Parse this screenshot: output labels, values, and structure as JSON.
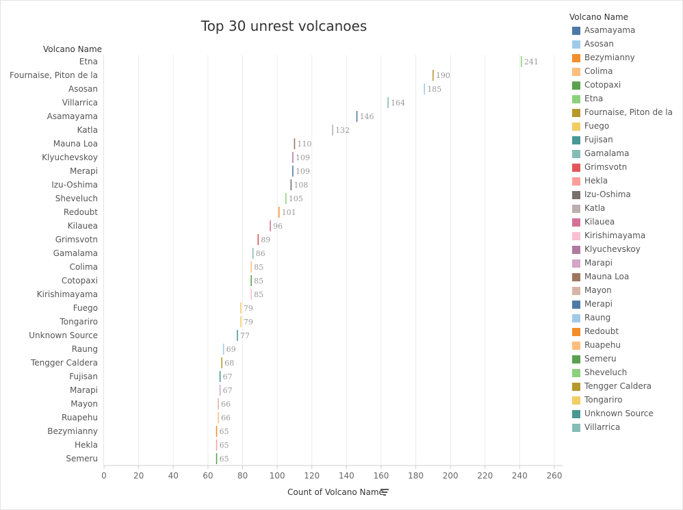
{
  "chart_data": {
    "type": "scatter",
    "title": "Top 30 unrest volcanoes",
    "row_header": "Volcano Name",
    "xlabel": "Count of Volcano Name",
    "xlim": [
      0,
      260
    ],
    "xticks": [
      0,
      20,
      40,
      60,
      80,
      100,
      120,
      140,
      160,
      180,
      200,
      220,
      240,
      260
    ],
    "grid": true,
    "legend_title": "Volcano Name",
    "legend_position": "right",
    "categories": [
      "Etna",
      "Fournaise, Piton de la",
      "Asosan",
      "Villarrica",
      "Asamayama",
      "Katla",
      "Mauna Loa",
      "Klyuchevskoy",
      "Merapi",
      "Izu-Oshima",
      "Sheveluch",
      "Redoubt",
      "Kilauea",
      "Grimsvotn",
      "Gamalama",
      "Colima",
      "Cotopaxi",
      "Kirishimayama",
      "Fuego",
      "Tongariro",
      "Unknown Source",
      "Raung",
      "Tengger Caldera",
      "Fujisan",
      "Marapi",
      "Mayon",
      "Ruapehu",
      "Bezymianny",
      "Hekla",
      "Semeru"
    ],
    "values": [
      241,
      190,
      185,
      164,
      146,
      132,
      110,
      109,
      109,
      108,
      105,
      101,
      96,
      89,
      86,
      85,
      85,
      85,
      79,
      79,
      77,
      69,
      68,
      67,
      67,
      66,
      66,
      65,
      65,
      65
    ],
    "legend": [
      {
        "name": "Asamayama",
        "color": "#4e79a7"
      },
      {
        "name": "Asosan",
        "color": "#a0cbe8"
      },
      {
        "name": "Bezymianny",
        "color": "#f28e2b"
      },
      {
        "name": "Colima",
        "color": "#ffbe7d"
      },
      {
        "name": "Cotopaxi",
        "color": "#59a14f"
      },
      {
        "name": "Etna",
        "color": "#8cd17d"
      },
      {
        "name": "Fournaise, Piton de la",
        "color": "#b6992d"
      },
      {
        "name": "Fuego",
        "color": "#f1ce63"
      },
      {
        "name": "Fujisan",
        "color": "#499894"
      },
      {
        "name": "Gamalama",
        "color": "#86bcb6"
      },
      {
        "name": "Grimsvotn",
        "color": "#e15759"
      },
      {
        "name": "Hekla",
        "color": "#ff9d9a"
      },
      {
        "name": "Izu-Oshima",
        "color": "#79706e"
      },
      {
        "name": "Katla",
        "color": "#bab0ac"
      },
      {
        "name": "Kilauea",
        "color": "#d37295"
      },
      {
        "name": "Kirishimayama",
        "color": "#fabfd2"
      },
      {
        "name": "Klyuchevskoy",
        "color": "#b07aa1"
      },
      {
        "name": "Marapi",
        "color": "#d4a6c8"
      },
      {
        "name": "Mauna Loa",
        "color": "#9d7660"
      },
      {
        "name": "Mayon",
        "color": "#d7b5a6"
      },
      {
        "name": "Merapi",
        "color": "#4e79a7"
      },
      {
        "name": "Raung",
        "color": "#a0cbe8"
      },
      {
        "name": "Redoubt",
        "color": "#f28e2b"
      },
      {
        "name": "Ruapehu",
        "color": "#ffbe7d"
      },
      {
        "name": "Semeru",
        "color": "#59a14f"
      },
      {
        "name": "Sheveluch",
        "color": "#8cd17d"
      },
      {
        "name": "Tengger Caldera",
        "color": "#b6992d"
      },
      {
        "name": "Tongariro",
        "color": "#f1ce63"
      },
      {
        "name": "Unknown Source",
        "color": "#499894"
      },
      {
        "name": "Villarrica",
        "color": "#86bcb6"
      }
    ]
  }
}
